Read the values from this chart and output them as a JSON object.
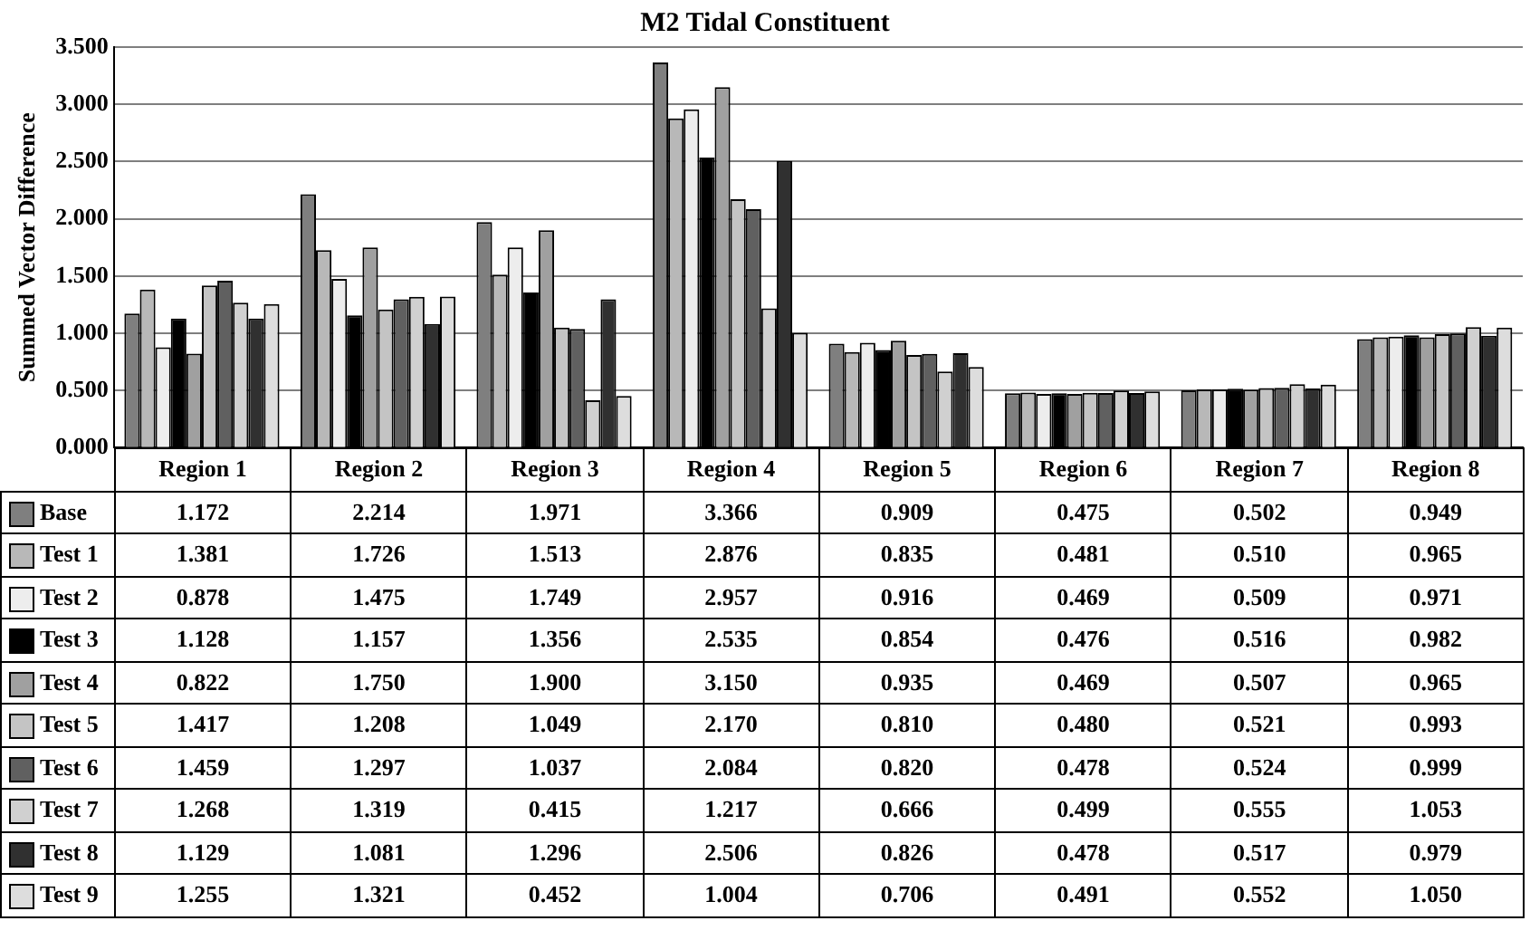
{
  "chart_data": {
    "type": "bar",
    "title": "M2 Tidal Constituent",
    "ylabel": "Summed Vector Difference",
    "categories": [
      "Region 1",
      "Region 2",
      "Region 3",
      "Region 4",
      "Region 5",
      "Region 6",
      "Region 7",
      "Region 8"
    ],
    "series": [
      {
        "name": "Base",
        "color": "#7f7f7f",
        "values": [
          1.172,
          2.214,
          1.971,
          3.366,
          0.909,
          0.475,
          0.502,
          0.949
        ],
        "value_labels": [
          "1.172",
          "2.214",
          "1.971",
          "3.366",
          "0.909",
          "0.475",
          "0.502",
          "0.949"
        ]
      },
      {
        "name": "Test 1",
        "color": "#b8b8b8",
        "values": [
          1.381,
          1.726,
          1.513,
          2.876,
          0.835,
          0.481,
          0.51,
          0.965
        ],
        "value_labels": [
          "1.381",
          "1.726",
          "1.513",
          "2.876",
          "0.835",
          "0.481",
          "0.510",
          "0.965"
        ]
      },
      {
        "name": "Test 2",
        "color": "#ededed",
        "values": [
          0.878,
          1.475,
          1.749,
          2.957,
          0.916,
          0.469,
          0.509,
          0.971
        ],
        "value_labels": [
          "0.878",
          "1.475",
          "1.749",
          "2.957",
          "0.916",
          "0.469",
          "0.509",
          "0.971"
        ]
      },
      {
        "name": "Test 3",
        "color": "#000000",
        "values": [
          1.128,
          1.157,
          1.356,
          2.535,
          0.854,
          0.476,
          0.516,
          0.982
        ],
        "value_labels": [
          "1.128",
          "1.157",
          "1.356",
          "2.535",
          "0.854",
          "0.476",
          "0.516",
          "0.982"
        ]
      },
      {
        "name": "Test 4",
        "color": "#a0a0a0",
        "values": [
          0.822,
          1.75,
          1.9,
          3.15,
          0.935,
          0.469,
          0.507,
          0.965
        ],
        "value_labels": [
          "0.822",
          "1.750",
          "1.900",
          "3.150",
          "0.935",
          "0.469",
          "0.507",
          "0.965"
        ]
      },
      {
        "name": "Test 5",
        "color": "#c4c4c4",
        "values": [
          1.417,
          1.208,
          1.049,
          2.17,
          0.81,
          0.48,
          0.521,
          0.993
        ],
        "value_labels": [
          "1.417",
          "1.208",
          "1.049",
          "2.170",
          "0.810",
          "0.480",
          "0.521",
          "0.993"
        ]
      },
      {
        "name": "Test 6",
        "color": "#606060",
        "values": [
          1.459,
          1.297,
          1.037,
          2.084,
          0.82,
          0.478,
          0.524,
          0.999
        ],
        "value_labels": [
          "1.459",
          "1.297",
          "1.037",
          "2.084",
          "0.820",
          "0.478",
          "0.524",
          "0.999"
        ]
      },
      {
        "name": "Test 7",
        "color": "#d0d0d0",
        "values": [
          1.268,
          1.319,
          0.415,
          1.217,
          0.666,
          0.499,
          0.555,
          1.053
        ],
        "value_labels": [
          "1.268",
          "1.319",
          "0.415",
          "1.217",
          "0.666",
          "0.499",
          "0.555",
          "1.053"
        ]
      },
      {
        "name": "Test 8",
        "color": "#303030",
        "values": [
          1.129,
          1.081,
          1.296,
          2.506,
          0.826,
          0.478,
          0.517,
          0.979
        ],
        "value_labels": [
          "1.129",
          "1.081",
          "1.296",
          "2.506",
          "0.826",
          "0.478",
          "0.517",
          "0.979"
        ]
      },
      {
        "name": "Test 9",
        "color": "#dddddd",
        "values": [
          1.255,
          1.321,
          0.452,
          1.004,
          0.706,
          0.491,
          0.552,
          1.05
        ],
        "value_labels": [
          "1.255",
          "1.321",
          "0.452",
          "1.004",
          "0.706",
          "0.491",
          "0.552",
          "1.050"
        ]
      }
    ],
    "ylim": [
      0,
      3.5
    ],
    "yticks": [
      {
        "value": 0,
        "label": "0.000"
      },
      {
        "value": 0.5,
        "label": "0.500"
      },
      {
        "value": 1,
        "label": "1.000"
      },
      {
        "value": 1.5,
        "label": "1.500"
      },
      {
        "value": 2,
        "label": "2.000"
      },
      {
        "value": 2.5,
        "label": "2.500"
      },
      {
        "value": 3,
        "label": "3.000"
      },
      {
        "value": 3.5,
        "label": "3.500"
      }
    ],
    "grid": "y",
    "legend": "bottom"
  }
}
